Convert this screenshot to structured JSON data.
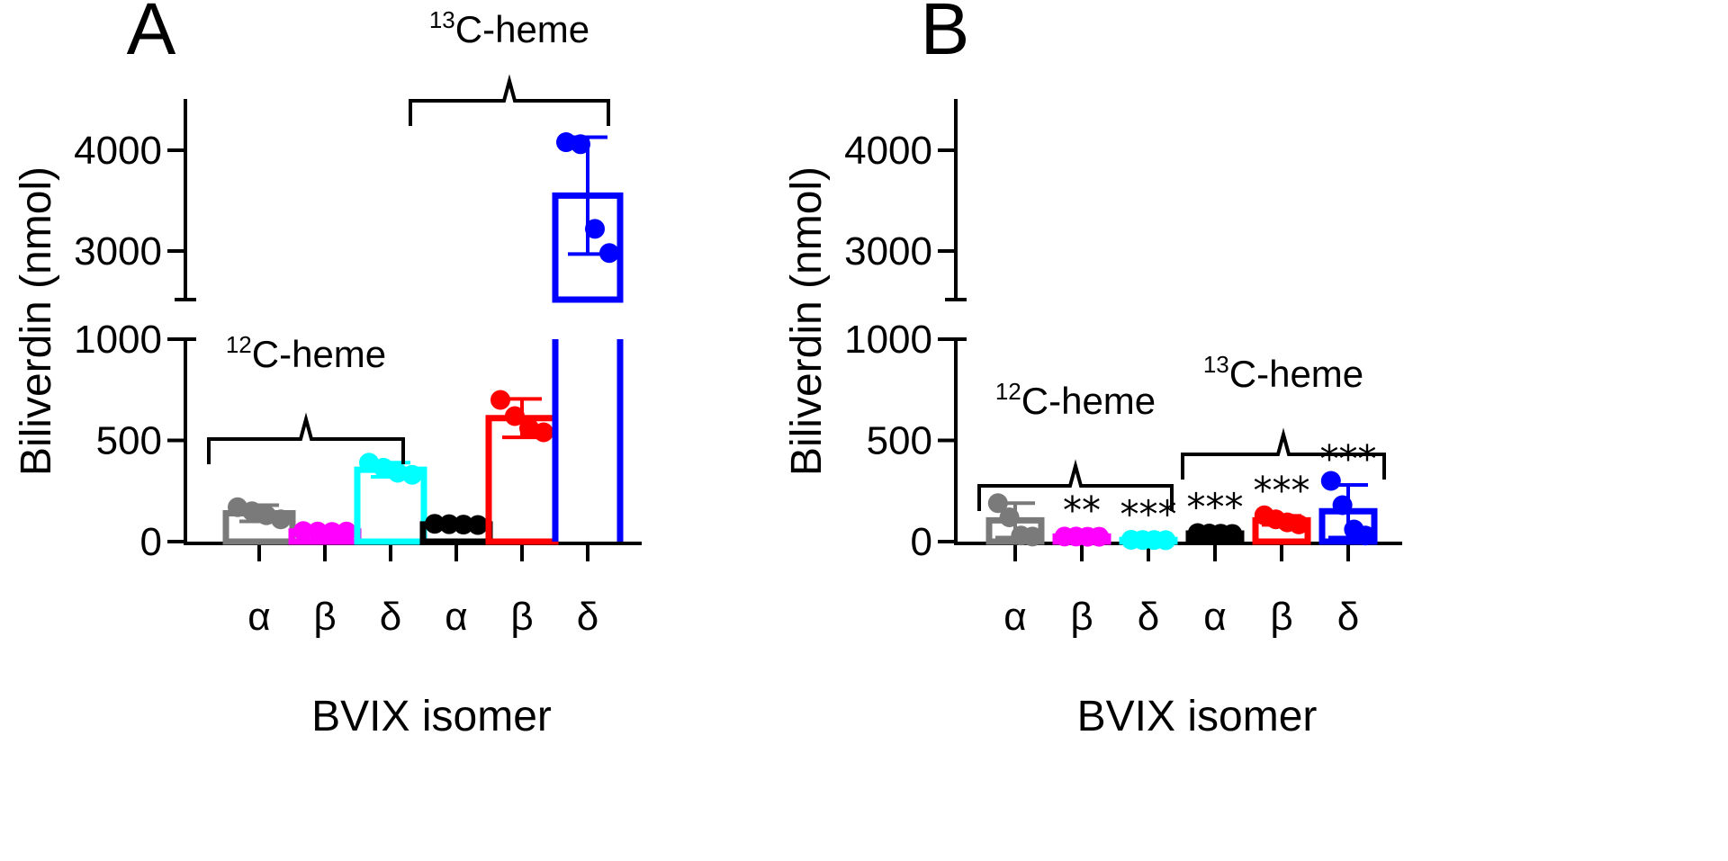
{
  "chart_data": [
    {
      "type": "bar",
      "panel_label": "A",
      "xlabel": "BVIX isomer",
      "ylabel": "Biliverdin (nmol)",
      "ylim": [
        0,
        4500
      ],
      "y_axis_break": [
        1000,
        2500
      ],
      "yticks": [
        "0",
        "500",
        "1000",
        "3000",
        "4000"
      ],
      "categories": [
        "α",
        "β",
        "δ",
        "α",
        "β",
        "δ"
      ],
      "groups": [
        {
          "label_prefix": "12",
          "label_rest": "C-heme",
          "categories": [
            0,
            1,
            2
          ]
        },
        {
          "label_prefix": "13",
          "label_rest": "C-heme",
          "categories": [
            3,
            4,
            5
          ]
        }
      ],
      "series": [
        {
          "color": "#7a7a7a",
          "mean": 140,
          "sd": 40,
          "points": [
            170,
            150,
            130,
            110
          ]
        },
        {
          "color": "#ff00ff",
          "mean": 50,
          "sd": 8,
          "points": [
            52,
            50,
            48,
            50
          ]
        },
        {
          "color": "#00ffff",
          "mean": 355,
          "sd": 35,
          "points": [
            390,
            365,
            340,
            330
          ]
        },
        {
          "color": "#000000",
          "mean": 85,
          "sd": 10,
          "points": [
            88,
            86,
            84,
            82
          ]
        },
        {
          "color": "#ff0000",
          "mean": 610,
          "sd": 95,
          "points": [
            700,
            620,
            560,
            540
          ]
        },
        {
          "color": "#0000ff",
          "mean": 3550,
          "sd": 580,
          "points": [
            4080,
            4060,
            3220,
            2980
          ]
        }
      ],
      "significance": [
        "",
        "",
        "",
        "",
        "",
        ""
      ]
    },
    {
      "type": "bar",
      "panel_label": "B",
      "xlabel": "BVIX isomer",
      "ylabel": "Biliverdin (nmol)",
      "ylim": [
        0,
        4500
      ],
      "y_axis_break": [
        1000,
        2500
      ],
      "yticks": [
        "0",
        "500",
        "1000",
        "3000",
        "4000"
      ],
      "categories": [
        "α",
        "β",
        "δ",
        "α",
        "β",
        "δ"
      ],
      "groups": [
        {
          "label_prefix": "12",
          "label_rest": "C-heme",
          "categories": [
            0,
            1,
            2
          ]
        },
        {
          "label_prefix": "13",
          "label_rest": "C-heme",
          "categories": [
            3,
            4,
            5
          ]
        }
      ],
      "series": [
        {
          "color": "#7a7a7a",
          "mean": 105,
          "sd": 85,
          "points": [
            190,
            120,
            30,
            25
          ]
        },
        {
          "color": "#ff00ff",
          "mean": 25,
          "sd": 3,
          "points": [
            25,
            25,
            24,
            24
          ]
        },
        {
          "color": "#00ffff",
          "mean": 8,
          "sd": 2,
          "points": [
            9,
            8,
            8,
            7
          ]
        },
        {
          "color": "#000000",
          "mean": 40,
          "sd": 4,
          "points": [
            42,
            40,
            39,
            38
          ]
        },
        {
          "color": "#ff0000",
          "mean": 105,
          "sd": 22,
          "points": [
            130,
            110,
            95,
            85
          ]
        },
        {
          "color": "#0000ff",
          "mean": 150,
          "sd": 130,
          "points": [
            300,
            180,
            60,
            30
          ]
        }
      ],
      "significance": [
        "",
        "**",
        "***",
        "***",
        "***",
        "***"
      ]
    }
  ]
}
